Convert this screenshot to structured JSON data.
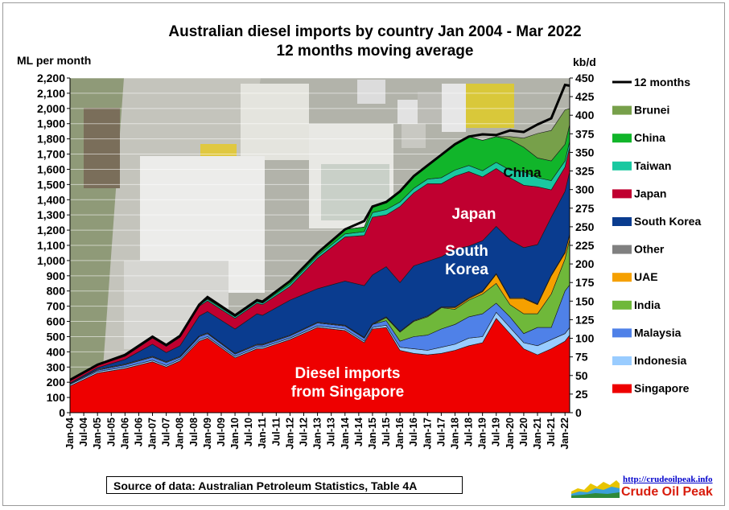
{
  "chart_data": {
    "type": "area",
    "stacked": true,
    "title": "Australian diesel imports by country Jan 2004 - Mar 2022",
    "subtitle": "12 months moving average",
    "ylabel_left": "ML per month",
    "ylabel_right": "kb/d",
    "ylim_left": [
      0,
      2200
    ],
    "ylim_right": [
      0,
      450
    ],
    "yticks_left": [
      "0",
      "100",
      "200",
      "300",
      "400",
      "500",
      "600",
      "700",
      "800",
      "900",
      "1,000",
      "1,100",
      "1,200",
      "1,300",
      "1,400",
      "1,500",
      "1,600",
      "1,700",
      "1,800",
      "1,900",
      "2,000",
      "2,100",
      "2,200"
    ],
    "yticks_right": [
      "0",
      "25",
      "50",
      "75",
      "100",
      "125",
      "150",
      "175",
      "200",
      "225",
      "250",
      "275",
      "300",
      "325",
      "350",
      "375",
      "400",
      "425",
      "450"
    ],
    "x_tick_labels": [
      "Jan-04",
      "Jul-04",
      "Jan-05",
      "Jul-05",
      "Jan-06",
      "Jul-06",
      "Jan-07",
      "Jul-07",
      "Jan-08",
      "Jul-08",
      "Jan-09",
      "Jul-09",
      "Jan-10",
      "Jul-10",
      "Jan-11",
      "Jul-11",
      "Jan-12",
      "Jul-12",
      "Jan-13",
      "Jul-13",
      "Jan-14",
      "Jul-14",
      "Jan-15",
      "Jul-15",
      "Jan-16",
      "Jul-16",
      "Jan-17",
      "Jul-17",
      "Jan-18",
      "Jul-18",
      "Jan-19",
      "Jul-19",
      "Jan-20",
      "Jul-20",
      "Jan-21",
      "Jul-21",
      "Jan-22"
    ],
    "x_range": [
      2004.0,
      2022.17
    ],
    "grid": "horizontal",
    "legend_position": "right",
    "x": [
      2004.0,
      2005.0,
      2006.0,
      2007.0,
      2007.5,
      2008.0,
      2008.7,
      2009.0,
      2010.0,
      2010.8,
      2011.0,
      2012.0,
      2013.0,
      2014.0,
      2014.7,
      2015.0,
      2015.5,
      2016.0,
      2016.5,
      2017.0,
      2017.5,
      2018.0,
      2018.5,
      2019.0,
      2019.5,
      2020.0,
      2020.5,
      2021.0,
      2021.5,
      2022.0,
      2022.17
    ],
    "series": [
      {
        "name": "Singapore",
        "color": "#ee0000",
        "values": [
          175,
          260,
          290,
          335,
          300,
          340,
          470,
          490,
          360,
          420,
          420,
          480,
          560,
          540,
          460,
          550,
          560,
          410,
          390,
          380,
          390,
          410,
          440,
          460,
          620,
          520,
          420,
          380,
          420,
          470,
          510
        ]
      },
      {
        "name": "Indonesia",
        "color": "#99ccff",
        "values": [
          10,
          10,
          10,
          10,
          10,
          10,
          10,
          10,
          10,
          10,
          10,
          10,
          10,
          10,
          10,
          10,
          15,
          20,
          30,
          30,
          40,
          40,
          50,
          40,
          40,
          40,
          40,
          60,
          60,
          50,
          50
        ]
      },
      {
        "name": "Malaysia",
        "color": "#4f81e8",
        "values": [
          5,
          10,
          15,
          20,
          20,
          15,
          20,
          20,
          15,
          15,
          15,
          15,
          20,
          20,
          20,
          20,
          30,
          40,
          80,
          100,
          120,
          130,
          140,
          150,
          60,
          70,
          60,
          120,
          80,
          280,
          280
        ]
      },
      {
        "name": "India",
        "color": "#6fb83a",
        "values": [
          0,
          0,
          0,
          0,
          0,
          0,
          0,
          0,
          0,
          0,
          0,
          0,
          0,
          0,
          0,
          0,
          20,
          60,
          100,
          120,
          140,
          100,
          110,
          130,
          130,
          80,
          130,
          90,
          220,
          210,
          300
        ]
      },
      {
        "name": "UAE",
        "color": "#f5a000",
        "values": [
          0,
          0,
          0,
          0,
          0,
          0,
          0,
          0,
          0,
          0,
          0,
          0,
          0,
          0,
          0,
          0,
          0,
          0,
          0,
          0,
          0,
          10,
          10,
          15,
          60,
          40,
          100,
          60,
          120,
          40,
          30
        ]
      },
      {
        "name": "Other",
        "color": "#808080",
        "values": [
          0,
          5,
          5,
          5,
          5,
          5,
          5,
          5,
          5,
          5,
          5,
          5,
          5,
          5,
          5,
          5,
          5,
          5,
          5,
          5,
          5,
          5,
          5,
          5,
          5,
          5,
          5,
          5,
          5,
          5,
          5
        ]
      },
      {
        "name": "South Korea",
        "color": "#0a3c8f",
        "values": [
          5,
          10,
          30,
          80,
          60,
          70,
          130,
          140,
          160,
          200,
          190,
          230,
          220,
          290,
          340,
          320,
          330,
          320,
          360,
          360,
          330,
          380,
          340,
          330,
          310,
          380,
          330,
          390,
          380,
          400,
          410
        ]
      },
      {
        "name": "Japan",
        "color": "#c00030",
        "values": [
          15,
          15,
          20,
          40,
          40,
          55,
          65,
          70,
          70,
          70,
          70,
          90,
          200,
          290,
          330,
          380,
          340,
          500,
          480,
          510,
          480,
          480,
          490,
          420,
          380,
          410,
          410,
          380,
          180,
          160,
          160
        ]
      },
      {
        "name": "Taiwan",
        "color": "#19c8a0",
        "values": [
          5,
          5,
          10,
          10,
          10,
          10,
          10,
          10,
          10,
          10,
          10,
          15,
          15,
          20,
          25,
          30,
          35,
          30,
          30,
          30,
          40,
          40,
          40,
          40,
          40,
          50,
          90,
          60,
          60,
          40,
          40
        ]
      },
      {
        "name": "China",
        "color": "#11b52a",
        "values": [
          0,
          0,
          0,
          0,
          0,
          0,
          0,
          5,
          10,
          10,
          10,
          20,
          20,
          30,
          30,
          40,
          50,
          70,
          80,
          90,
          150,
          170,
          190,
          200,
          170,
          200,
          160,
          130,
          130,
          110,
          110
        ]
      },
      {
        "name": "Brunei",
        "color": "#77a04a",
        "values": [
          0,
          0,
          0,
          0,
          0,
          0,
          0,
          0,
          0,
          0,
          0,
          0,
          0,
          0,
          0,
          0,
          0,
          0,
          0,
          0,
          0,
          0,
          0,
          0,
          0,
          20,
          60,
          160,
          200,
          225,
          105
        ]
      }
    ],
    "total_line": {
      "name": "12 months",
      "color": "#000000",
      "values": [
        215,
        315,
        380,
        500,
        445,
        505,
        710,
        760,
        640,
        740,
        730,
        865,
        1050,
        1205,
        1260,
        1355,
        1385,
        1455,
        1555,
        1625,
        1695,
        1765,
        1815,
        1830,
        1825,
        1855,
        1845,
        1895,
        1935,
        2155,
        2150
      ]
    },
    "legend": [
      "12 months",
      "Brunei",
      "China",
      "Taiwan",
      "Japan",
      "South Korea",
      "Other",
      "UAE",
      "India",
      "Malaysia",
      "Indonesia",
      "Singapore"
    ],
    "annotations": {
      "singapore": [
        "Diesel imports",
        "from Singapore"
      ],
      "japan": "Japan",
      "south_korea": [
        "South",
        "Korea"
      ],
      "china": "China"
    },
    "source": "Source of data: Australian Petroleum Statistics, Table 4A"
  },
  "logo": {
    "url": "http://crudeoilpeak.info",
    "name": "Crude Oil Peak"
  }
}
